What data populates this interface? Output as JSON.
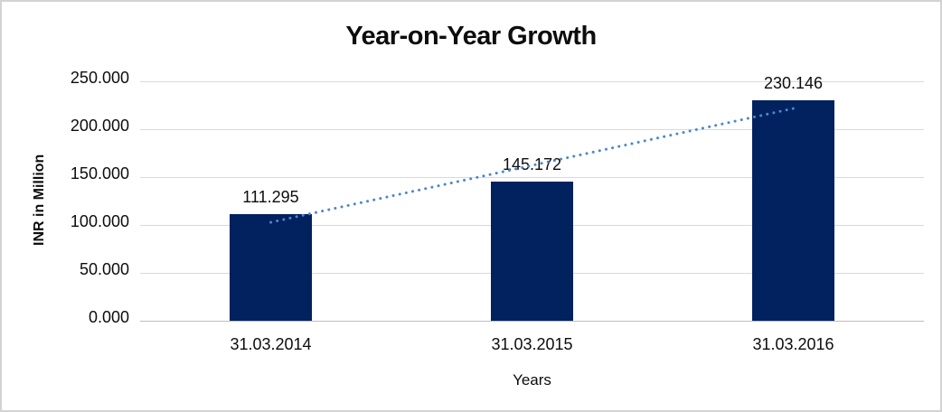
{
  "figure": {
    "background": "#FFFFFF",
    "border_color": "#D3D3D3"
  },
  "chart_data": {
    "type": "bar",
    "title": "Year-on-Year Growth",
    "xlabel": "Years",
    "ylabel": "INR in Million",
    "categories": [
      "31.03.2014",
      "31.03.2015",
      "31.03.2016"
    ],
    "values": [
      111.295,
      145.172,
      230.146
    ],
    "data_labels": [
      "111.295",
      "145.172",
      "230.146"
    ],
    "ylim": [
      0,
      250
    ],
    "ytick_step": 50,
    "yticks": [
      {
        "value": 0,
        "label": "0.000"
      },
      {
        "value": 50,
        "label": "50.000"
      },
      {
        "value": 100,
        "label": "100.000"
      },
      {
        "value": 150,
        "label": "150.000"
      },
      {
        "value": 200,
        "label": "200.000"
      },
      {
        "value": 250,
        "label": "250.000"
      }
    ],
    "grid": true,
    "legend_position": "none",
    "trendline": {
      "type": "linear",
      "style": "dotted"
    },
    "colors": {
      "bar": "#02215F",
      "trendline": "#4E87C8",
      "gridline": "#D9D9D9",
      "axis_line": "#BFBFBF",
      "text": "#0D0D0D"
    }
  }
}
